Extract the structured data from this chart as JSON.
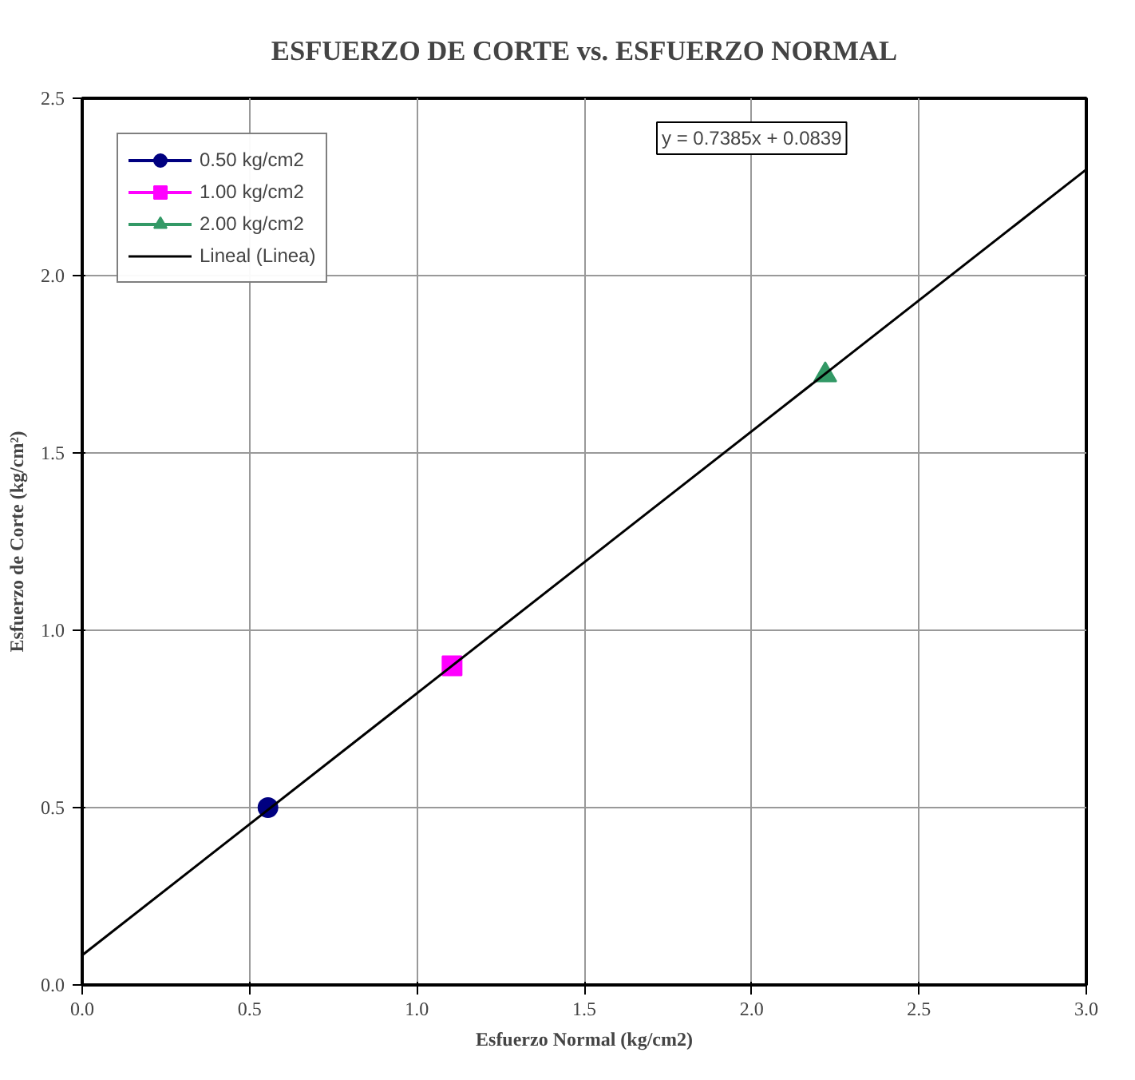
{
  "chart_data": {
    "type": "line",
    "title": "ESFUERZO DE CORTE vs. ESFUERZO NORMAL",
    "xlabel": "Esfuerzo Normal (kg/cm2)",
    "ylabel": "Esfuerzo de Corte (kg/cm²)",
    "series": [
      {
        "name": "0.50 kg/cm2",
        "color": "#000080",
        "marker": "circle",
        "x": [
          0.555
        ],
        "values": [
          0.5
        ]
      },
      {
        "name": "1.00 kg/cm2",
        "color": "#ff00ff",
        "marker": "square",
        "x": [
          1.105
        ],
        "values": [
          0.9
        ]
      },
      {
        "name": "2.00 kg/cm2",
        "color": "#339966",
        "marker": "triangle",
        "x": [
          2.22
        ],
        "values": [
          1.72
        ]
      },
      {
        "name": "Lineal (Linea)",
        "color": "#000000",
        "marker": "none",
        "x": [
          0,
          3
        ],
        "values": [
          0.0839,
          2.2994
        ]
      }
    ],
    "annotations": [
      "y = 0.7385x + 0.0839"
    ],
    "xlim": [
      0,
      3
    ],
    "ylim": [
      0,
      2.5
    ],
    "xticks": [
      {
        "value": 0,
        "label": "0.0"
      },
      {
        "value": 0.5,
        "label": "0.5"
      },
      {
        "value": 1,
        "label": "1.0"
      },
      {
        "value": 1.5,
        "label": "1.5"
      },
      {
        "value": 2,
        "label": "2.0"
      },
      {
        "value": 2.5,
        "label": "2.5"
      },
      {
        "value": 3,
        "label": "3.0"
      }
    ],
    "yticks": [
      {
        "value": 0,
        "label": "0.0"
      },
      {
        "value": 0.5,
        "label": "0.5"
      },
      {
        "value": 1,
        "label": "1.0"
      },
      {
        "value": 1.5,
        "label": "1.5"
      },
      {
        "value": 2,
        "label": "2.0"
      },
      {
        "value": 2.5,
        "label": "2.5"
      }
    ],
    "grid": true,
    "legend": "top left"
  }
}
